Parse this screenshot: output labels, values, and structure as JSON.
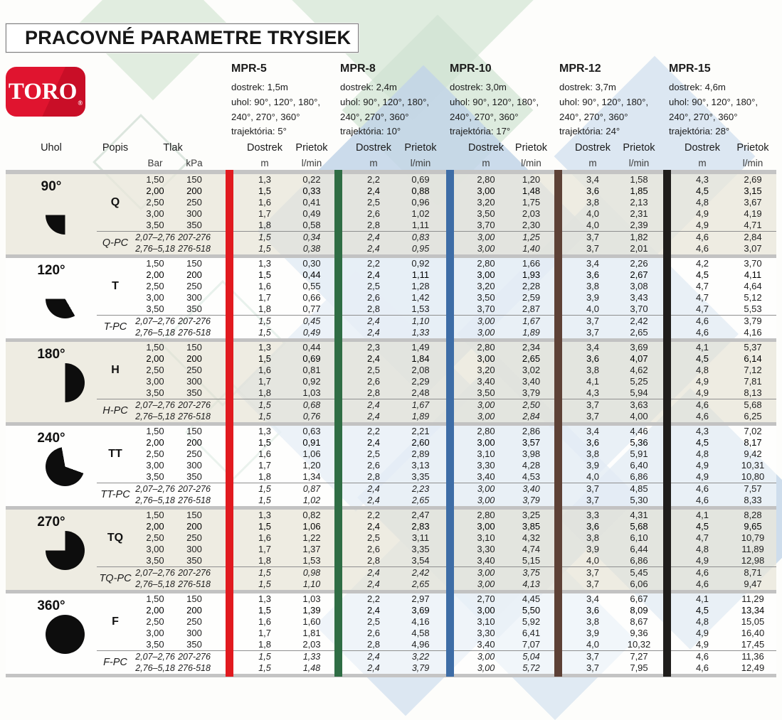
{
  "title": "PRACOVNÉ PARAMETRE TRYSIEK",
  "logo": {
    "text": "TORO",
    "reg": "®",
    "brand_color": "#d8102d"
  },
  "separator_colors": [
    "#e11a1f",
    "#2f6d44",
    "#3e6da6",
    "#5d4136",
    "#1f1d1b"
  ],
  "header": {
    "uhol": "Uhol",
    "popis": "Popis",
    "tlak": "Tlak",
    "bar": "Bar",
    "kpa": "kPa",
    "dostrek": "Dostrek",
    "prietok": "Prietok",
    "m": "m",
    "lmin": "l/min"
  },
  "models": [
    {
      "name": "MPR-5",
      "lines": [
        "dostrek: 1,5m",
        "uhol: 90°, 120°, 180°,",
        "240°, 270°, 360°",
        "trajektória: 5°"
      ]
    },
    {
      "name": "MPR-8",
      "lines": [
        "dostrek: 2,4m",
        "uhol: 90°, 120°, 180°,",
        "240°, 270°, 360°",
        "trajektória: 10°"
      ]
    },
    {
      "name": "MPR-10",
      "lines": [
        "dostrek: 3,0m",
        "uhol: 90°, 120°, 180°,",
        "240°, 270°, 360°",
        "trajektória: 17°"
      ]
    },
    {
      "name": "MPR-12",
      "lines": [
        "dostrek: 3,7m",
        "uhol: 90°, 120°, 180°,",
        "240°, 270°, 360°",
        "trajektória: 24°"
      ]
    },
    {
      "name": "MPR-15",
      "lines": [
        "dostrek: 4,6m",
        "uhol: 90°, 120°, 180°,",
        "240°, 270°, 360°",
        "trajektória: 28°"
      ]
    }
  ],
  "groups": [
    {
      "angle": "90°",
      "sector_deg": 90,
      "popis": "Q",
      "popis_pc": "Q-PC",
      "rows": [
        {
          "bar": "1,50",
          "kpa": "150",
          "bold": false,
          "values": [
            "1,3",
            "0,22",
            "2,2",
            "0,69",
            "2,80",
            "1,20",
            "3,4",
            "1,58",
            "4,3",
            "2,69"
          ]
        },
        {
          "bar": "2,00",
          "kpa": "200",
          "bold": true,
          "values": [
            "1,5",
            "0,33",
            "2,4",
            "0,88",
            "3,00",
            "1,48",
            "3,6",
            "1,85",
            "4,5",
            "3,15"
          ]
        },
        {
          "bar": "2,50",
          "kpa": "250",
          "bold": false,
          "values": [
            "1,6",
            "0,41",
            "2,5",
            "0,96",
            "3,20",
            "1,75",
            "3,8",
            "2,13",
            "4,8",
            "3,67"
          ]
        },
        {
          "bar": "3,00",
          "kpa": "300",
          "bold": false,
          "values": [
            "1,7",
            "0,49",
            "2,6",
            "1,02",
            "3,50",
            "2,03",
            "4,0",
            "2,31",
            "4,9",
            "4,19"
          ]
        },
        {
          "bar": "3,50",
          "kpa": "350",
          "bold": false,
          "values": [
            "1,8",
            "0,58",
            "2,8",
            "1,11",
            "3,70",
            "2,30",
            "4,0",
            "2,39",
            "4,9",
            "4,71"
          ]
        }
      ],
      "pc_rows": [
        {
          "bar": "2,07–2,76",
          "kpa": "207-276",
          "values": [
            "1,5",
            "0,34",
            "2,4",
            "0,83",
            "3,00",
            "1,25",
            "3,7",
            "1,82",
            "4,6",
            "2,84"
          ]
        },
        {
          "bar": "2,76–5,18",
          "kpa": "276-518",
          "values": [
            "1,5",
            "0,38",
            "2,4",
            "0,95",
            "3,00",
            "1,40",
            "3,7",
            "2,01",
            "4,6",
            "3,07"
          ]
        }
      ]
    },
    {
      "angle": "120°",
      "sector_deg": 120,
      "popis": "T",
      "popis_pc": "T-PC",
      "rows": [
        {
          "bar": "1,50",
          "kpa": "150",
          "bold": false,
          "values": [
            "1,3",
            "0,30",
            "2,2",
            "0,92",
            "2,80",
            "1,66",
            "3,4",
            "2,26",
            "4,2",
            "3,70"
          ]
        },
        {
          "bar": "2,00",
          "kpa": "200",
          "bold": true,
          "values": [
            "1,5",
            "0,44",
            "2,4",
            "1,11",
            "3,00",
            "1,93",
            "3,6",
            "2,67",
            "4,5",
            "4,11"
          ]
        },
        {
          "bar": "2,50",
          "kpa": "250",
          "bold": false,
          "values": [
            "1,6",
            "0,55",
            "2,5",
            "1,28",
            "3,20",
            "2,28",
            "3,8",
            "3,08",
            "4,7",
            "4,64"
          ]
        },
        {
          "bar": "3,00",
          "kpa": "300",
          "bold": false,
          "values": [
            "1,7",
            "0,66",
            "2,6",
            "1,42",
            "3,50",
            "2,59",
            "3,9",
            "3,43",
            "4,7",
            "5,12"
          ]
        },
        {
          "bar": "3,50",
          "kpa": "350",
          "bold": false,
          "values": [
            "1,8",
            "0,77",
            "2,8",
            "1,53",
            "3,70",
            "2,87",
            "4,0",
            "3,70",
            "4,7",
            "5,53"
          ]
        }
      ],
      "pc_rows": [
        {
          "bar": "2,07–2,76",
          "kpa": "207-276",
          "values": [
            "1,5",
            "0,45",
            "2,4",
            "1,10",
            "3,00",
            "1,67",
            "3,7",
            "2,42",
            "4,6",
            "3,79"
          ]
        },
        {
          "bar": "2,76–5,18",
          "kpa": "276-518",
          "values": [
            "1,5",
            "0,49",
            "2,4",
            "1,33",
            "3,00",
            "1,89",
            "3,7",
            "2,65",
            "4,6",
            "4,16"
          ]
        }
      ]
    },
    {
      "angle": "180°",
      "sector_deg": 180,
      "popis": "H",
      "popis_pc": "H-PC",
      "rows": [
        {
          "bar": "1,50",
          "kpa": "150",
          "bold": false,
          "values": [
            "1,3",
            "0,44",
            "2,3",
            "1,49",
            "2,80",
            "2,34",
            "3,4",
            "3,69",
            "4,1",
            "5,37"
          ]
        },
        {
          "bar": "2,00",
          "kpa": "200",
          "bold": true,
          "values": [
            "1,5",
            "0,69",
            "2,4",
            "1,84",
            "3,00",
            "2,65",
            "3,6",
            "4,07",
            "4,5",
            "6,14"
          ]
        },
        {
          "bar": "2,50",
          "kpa": "250",
          "bold": false,
          "values": [
            "1,6",
            "0,81",
            "2,5",
            "2,08",
            "3,20",
            "3,02",
            "3,8",
            "4,62",
            "4,8",
            "7,12"
          ]
        },
        {
          "bar": "3,00",
          "kpa": "300",
          "bold": false,
          "values": [
            "1,7",
            "0,92",
            "2,6",
            "2,29",
            "3,40",
            "3,40",
            "4,1",
            "5,25",
            "4,9",
            "7,81"
          ]
        },
        {
          "bar": "3,50",
          "kpa": "350",
          "bold": false,
          "values": [
            "1,8",
            "1,03",
            "2,8",
            "2,48",
            "3,50",
            "3,79",
            "4,3",
            "5,94",
            "4,9",
            "8,13"
          ]
        }
      ],
      "pc_rows": [
        {
          "bar": "2,07–2,76",
          "kpa": "207-276",
          "values": [
            "1,5",
            "0,68",
            "2,4",
            "1,67",
            "3,00",
            "2,50",
            "3,7",
            "3,63",
            "4,6",
            "5,68"
          ]
        },
        {
          "bar": "2,76–5,18",
          "kpa": "276-518",
          "values": [
            "1,5",
            "0,76",
            "2,4",
            "1,89",
            "3,00",
            "2,84",
            "3,7",
            "4,00",
            "4,6",
            "6,25"
          ]
        }
      ]
    },
    {
      "angle": "240°",
      "sector_deg": 240,
      "popis": "TT",
      "popis_pc": "TT-PC",
      "rows": [
        {
          "bar": "1,50",
          "kpa": "150",
          "bold": false,
          "values": [
            "1,3",
            "0,63",
            "2,2",
            "2,21",
            "2,80",
            "2,86",
            "3,4",
            "4,46",
            "4,3",
            "7,02"
          ]
        },
        {
          "bar": "2,00",
          "kpa": "200",
          "bold": true,
          "values": [
            "1,5",
            "0,91",
            "2,4",
            "2,60",
            "3,00",
            "3,57",
            "3,6",
            "5,36",
            "4,5",
            "8,17"
          ]
        },
        {
          "bar": "2,50",
          "kpa": "250",
          "bold": false,
          "values": [
            "1,6",
            "1,06",
            "2,5",
            "2,89",
            "3,10",
            "3,98",
            "3,8",
            "5,91",
            "4,8",
            "9,42"
          ]
        },
        {
          "bar": "3,00",
          "kpa": "300",
          "bold": false,
          "values": [
            "1,7",
            "1,20",
            "2,6",
            "3,13",
            "3,30",
            "4,28",
            "3,9",
            "6,40",
            "4,9",
            "10,31"
          ]
        },
        {
          "bar": "3,50",
          "kpa": "350",
          "bold": false,
          "values": [
            "1,8",
            "1,34",
            "2,8",
            "3,35",
            "3,40",
            "4,53",
            "4,0",
            "6,86",
            "4,9",
            "10,80"
          ]
        }
      ],
      "pc_rows": [
        {
          "bar": "2,07–2,76",
          "kpa": "207-276",
          "values": [
            "1,5",
            "0,87",
            "2,4",
            "2,23",
            "3,00",
            "3,40",
            "3,7",
            "4,85",
            "4,6",
            "7,57"
          ]
        },
        {
          "bar": "2,76–5,18",
          "kpa": "276-518",
          "values": [
            "1,5",
            "1,02",
            "2,4",
            "2,65",
            "3,00",
            "3,79",
            "3,7",
            "5,30",
            "4,6",
            "8,33"
          ]
        }
      ]
    },
    {
      "angle": "270°",
      "sector_deg": 270,
      "popis": "TQ",
      "popis_pc": "TQ-PC",
      "rows": [
        {
          "bar": "1,50",
          "kpa": "150",
          "bold": false,
          "values": [
            "1,3",
            "0,82",
            "2,2",
            "2,47",
            "2,80",
            "3,25",
            "3,3",
            "4,31",
            "4,1",
            "8,28"
          ]
        },
        {
          "bar": "2,00",
          "kpa": "200",
          "bold": true,
          "values": [
            "1,5",
            "1,06",
            "2,4",
            "2,83",
            "3,00",
            "3,85",
            "3,6",
            "5,68",
            "4,5",
            "9,65"
          ]
        },
        {
          "bar": "2,50",
          "kpa": "250",
          "bold": false,
          "values": [
            "1,6",
            "1,22",
            "2,5",
            "3,11",
            "3,10",
            "4,32",
            "3,8",
            "6,10",
            "4,7",
            "10,79"
          ]
        },
        {
          "bar": "3,00",
          "kpa": "300",
          "bold": false,
          "values": [
            "1,7",
            "1,37",
            "2,6",
            "3,35",
            "3,30",
            "4,74",
            "3,9",
            "6,44",
            "4,8",
            "11,89"
          ]
        },
        {
          "bar": "3,50",
          "kpa": "350",
          "bold": false,
          "values": [
            "1,8",
            "1,53",
            "2,8",
            "3,54",
            "3,40",
            "5,15",
            "4,0",
            "6,86",
            "4,9",
            "12,98"
          ]
        }
      ],
      "pc_rows": [
        {
          "bar": "2,07–2,76",
          "kpa": "207-276",
          "values": [
            "1,5",
            "0,98",
            "2,4",
            "2,42",
            "3,00",
            "3,75",
            "3,7",
            "5,45",
            "4,6",
            "8,71"
          ]
        },
        {
          "bar": "2,76–5,18",
          "kpa": "276-518",
          "values": [
            "1,5",
            "1,10",
            "2,4",
            "2,65",
            "3,00",
            "4,13",
            "3,7",
            "6,06",
            "4,6",
            "9,47"
          ]
        }
      ]
    },
    {
      "angle": "360°",
      "sector_deg": 360,
      "popis": "F",
      "popis_pc": "F-PC",
      "rows": [
        {
          "bar": "1,50",
          "kpa": "150",
          "bold": false,
          "values": [
            "1,3",
            "1,03",
            "2,2",
            "2,97",
            "2,70",
            "4,45",
            "3,4",
            "6,67",
            "4,1",
            "11,29"
          ]
        },
        {
          "bar": "2,00",
          "kpa": "200",
          "bold": true,
          "values": [
            "1,5",
            "1,39",
            "2,4",
            "3,69",
            "3,00",
            "5,50",
            "3,6",
            "8,09",
            "4,5",
            "13,34"
          ]
        },
        {
          "bar": "2,50",
          "kpa": "250",
          "bold": false,
          "values": [
            "1,6",
            "1,60",
            "2,5",
            "4,16",
            "3,10",
            "5,92",
            "3,8",
            "8,67",
            "4,8",
            "15,05"
          ]
        },
        {
          "bar": "3,00",
          "kpa": "300",
          "bold": false,
          "values": [
            "1,7",
            "1,81",
            "2,6",
            "4,58",
            "3,30",
            "6,41",
            "3,9",
            "9,36",
            "4,9",
            "16,40"
          ]
        },
        {
          "bar": "3,50",
          "kpa": "350",
          "bold": false,
          "values": [
            "1,8",
            "2,03",
            "2,8",
            "4,96",
            "3,40",
            "7,07",
            "4,0",
            "10,32",
            "4,9",
            "17,45"
          ]
        }
      ],
      "pc_rows": [
        {
          "bar": "2,07–2,76",
          "kpa": "207-276",
          "values": [
            "1,5",
            "1,33",
            "2,4",
            "3,22",
            "3,00",
            "5,04",
            "3,7",
            "7,27",
            "4,6",
            "11,36"
          ]
        },
        {
          "bar": "2,76–5,18",
          "kpa": "276-518",
          "values": [
            "1,5",
            "1,48",
            "2,4",
            "3,79",
            "3,00",
            "5,72",
            "3,7",
            "7,95",
            "4,6",
            "12,49"
          ]
        }
      ]
    }
  ]
}
